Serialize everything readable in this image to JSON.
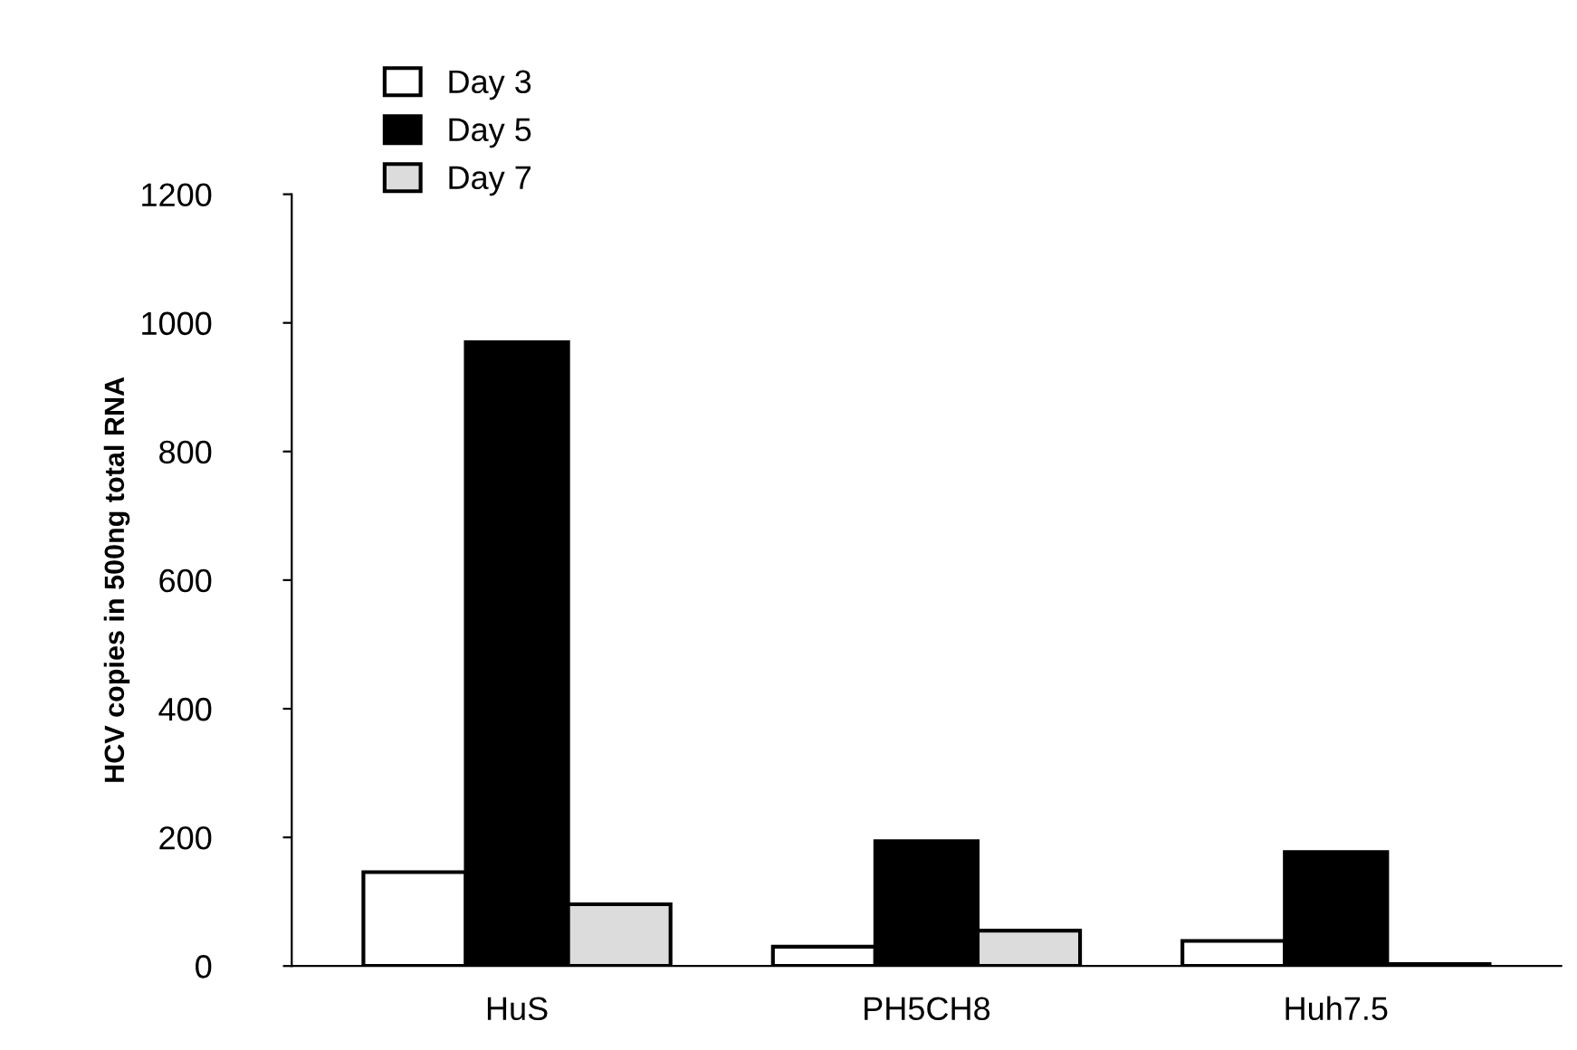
{
  "chart_data": {
    "type": "bar",
    "ylabel": "HCV copies in 500ng total RNA",
    "categories": [
      "HuS",
      "PH5CH8",
      "Huh7.5"
    ],
    "series": [
      {
        "name": "Day 3",
        "color": "#ffffff",
        "values": [
          146,
          30,
          39
        ]
      },
      {
        "name": "Day 5",
        "color": "#000000",
        "values": [
          970,
          194,
          177
        ]
      },
      {
        "name": "Day 7",
        "color": "#dcdcdc",
        "values": [
          96,
          55,
          3
        ]
      }
    ],
    "ylim": [
      0,
      1200
    ],
    "yticks": [
      0,
      200,
      400,
      600,
      800,
      1000,
      1200
    ],
    "grid": false,
    "legend": "top left"
  }
}
